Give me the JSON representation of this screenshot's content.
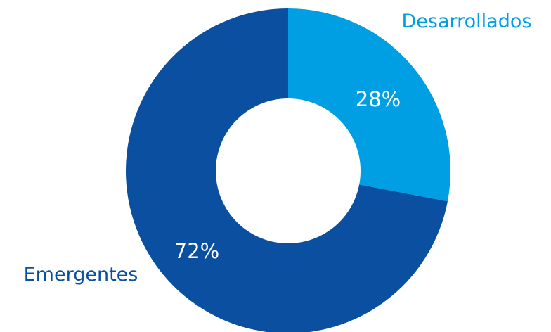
{
  "chart_data": {
    "type": "pie",
    "donut": true,
    "title": "",
    "legend": "none",
    "slices": [
      {
        "label": "Desarrollados",
        "value": 28,
        "value_label": "28%",
        "color": "#009fe3"
      },
      {
        "label": "Emergentes",
        "value": 72,
        "value_label": "72%",
        "color": "#0a4fa0"
      }
    ]
  }
}
